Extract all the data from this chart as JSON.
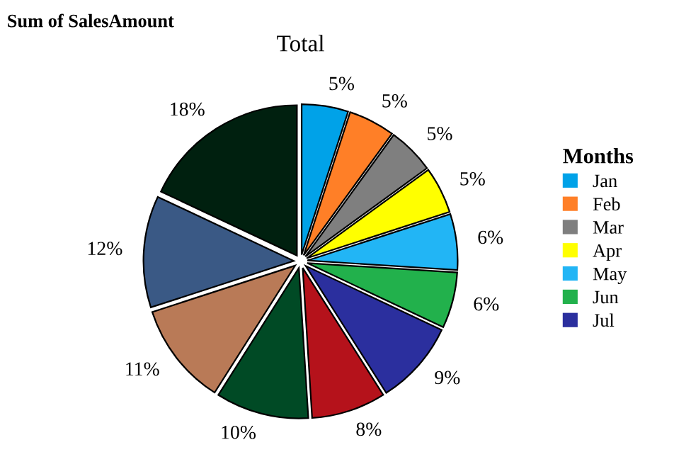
{
  "chart_data": {
    "type": "pie",
    "title": "Total",
    "subtitle": "Sum of SalesAmount",
    "legend_title": "Months",
    "legend": "right",
    "categories": [
      "Jan",
      "Feb",
      "Mar",
      "Apr",
      "May",
      "Jun",
      "Jul",
      null,
      null,
      null,
      null,
      null
    ],
    "values": [
      5,
      5,
      5,
      5,
      6,
      6,
      9,
      8,
      10,
      11,
      12,
      18
    ],
    "value_labels": [
      "5%",
      "5%",
      "5%",
      "5%",
      "6%",
      "6%",
      "9%",
      "8%",
      "10%",
      "11%",
      "12%",
      "18%"
    ],
    "colors": [
      "#00a2e8",
      "#ff7f27",
      "#7f7f7f",
      "#ffff00",
      "#22b5f5",
      "#22b14c",
      "#2b2f9e",
      "#b5121b",
      "#004a25",
      "#b97a57",
      "#3a5985",
      "#00200f"
    ]
  }
}
